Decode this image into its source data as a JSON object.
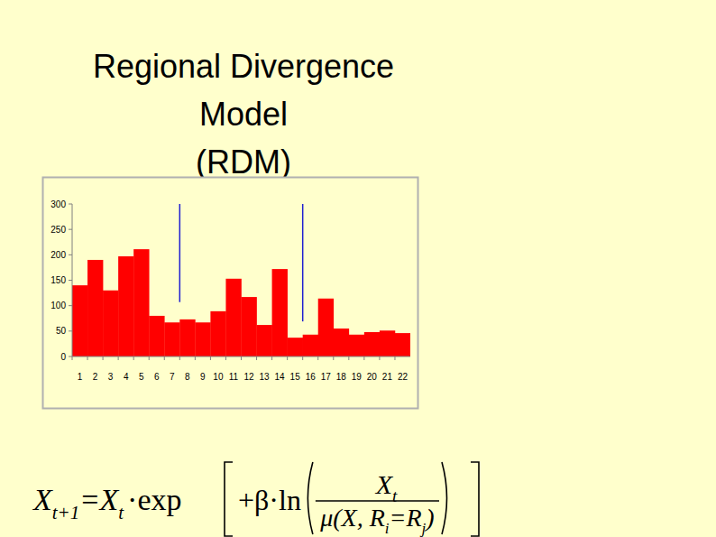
{
  "slide": {
    "title_lines": [
      "Regional Divergence",
      "Model",
      "(RDM)"
    ]
  },
  "chart_data": {
    "type": "bar",
    "categories": [
      "1",
      "2",
      "3",
      "4",
      "5",
      "6",
      "7",
      "8",
      "9",
      "10",
      "11",
      "12",
      "13",
      "14",
      "15",
      "16",
      "17",
      "18",
      "19",
      "20",
      "21",
      "22"
    ],
    "values": [
      140,
      190,
      130,
      197,
      211,
      80,
      67,
      73,
      67,
      89,
      153,
      117,
      62,
      172,
      37,
      43,
      114,
      55,
      43,
      48,
      51,
      46
    ],
    "color": "#ff0000",
    "ylim": [
      0,
      300
    ],
    "yticks": [
      0,
      50,
      100,
      150,
      200,
      250,
      300
    ],
    "grid": false,
    "dividers": [
      {
        "x": 7.5,
        "from": 107,
        "to": 300
      },
      {
        "x": 15.5,
        "from": 69,
        "to": 300
      }
    ]
  },
  "formula": {
    "lhs": [
      "X",
      "t+1"
    ],
    "eq": "=",
    "rhs_x": [
      "X",
      "t"
    ],
    "op": "·exp",
    "inner": "+β·ln",
    "numerator": [
      "X",
      "t"
    ],
    "denominator": [
      "μ(X, R",
      "i",
      "=R",
      "j",
      ")"
    ]
  }
}
